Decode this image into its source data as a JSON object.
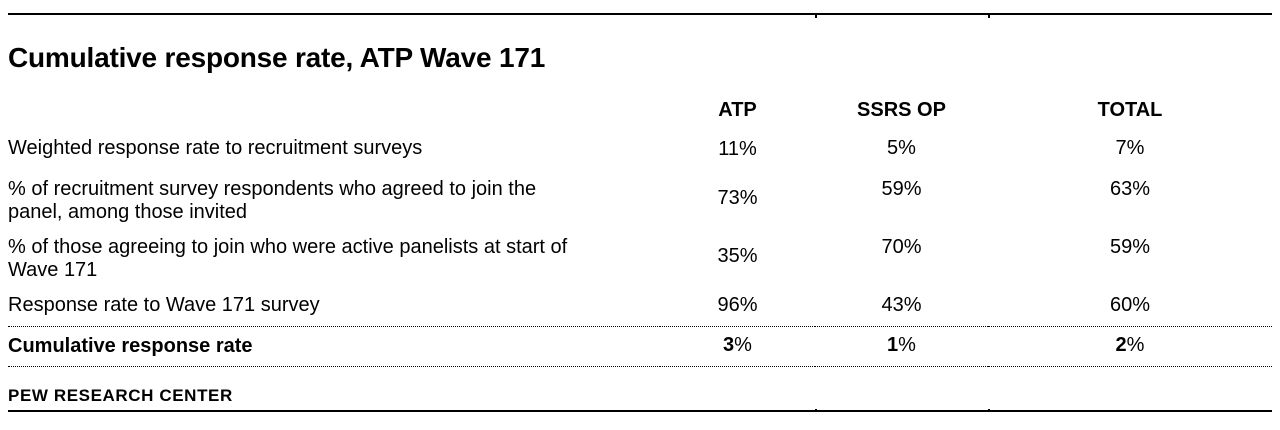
{
  "chart_data": {
    "type": "table",
    "title": "Cumulative response rate, ATP Wave 171",
    "columns": [
      "ATP",
      "SSRS OP",
      "TOTAL"
    ],
    "rows": [
      {
        "label": "Weighted response rate to recruitment surveys",
        "values": [
          "11%",
          "5%",
          "7%"
        ]
      },
      {
        "label": "% of recruitment survey respondents who agreed to join the\npanel, among those invited",
        "values": [
          "73%",
          "59%",
          "63%"
        ]
      },
      {
        "label": "% of those agreeing to join who were active panelists at start of\nWave 171",
        "values": [
          "35%",
          "70%",
          "59%"
        ]
      },
      {
        "label": "Response rate to Wave 171 survey",
        "values": [
          "96%",
          "43%",
          "60%"
        ]
      }
    ],
    "summary": {
      "label": "Cumulative response rate",
      "values": [
        "3%",
        "1%",
        "2%"
      ]
    },
    "source": "PEW RESEARCH CENTER",
    "layout": {
      "grid": "off",
      "separators": "dotted rules above and below summary row; solid rules top and bottom with column ticks"
    },
    "colors": {
      "text": "#000000",
      "rules": "#000000",
      "background": "#ffffff"
    }
  }
}
